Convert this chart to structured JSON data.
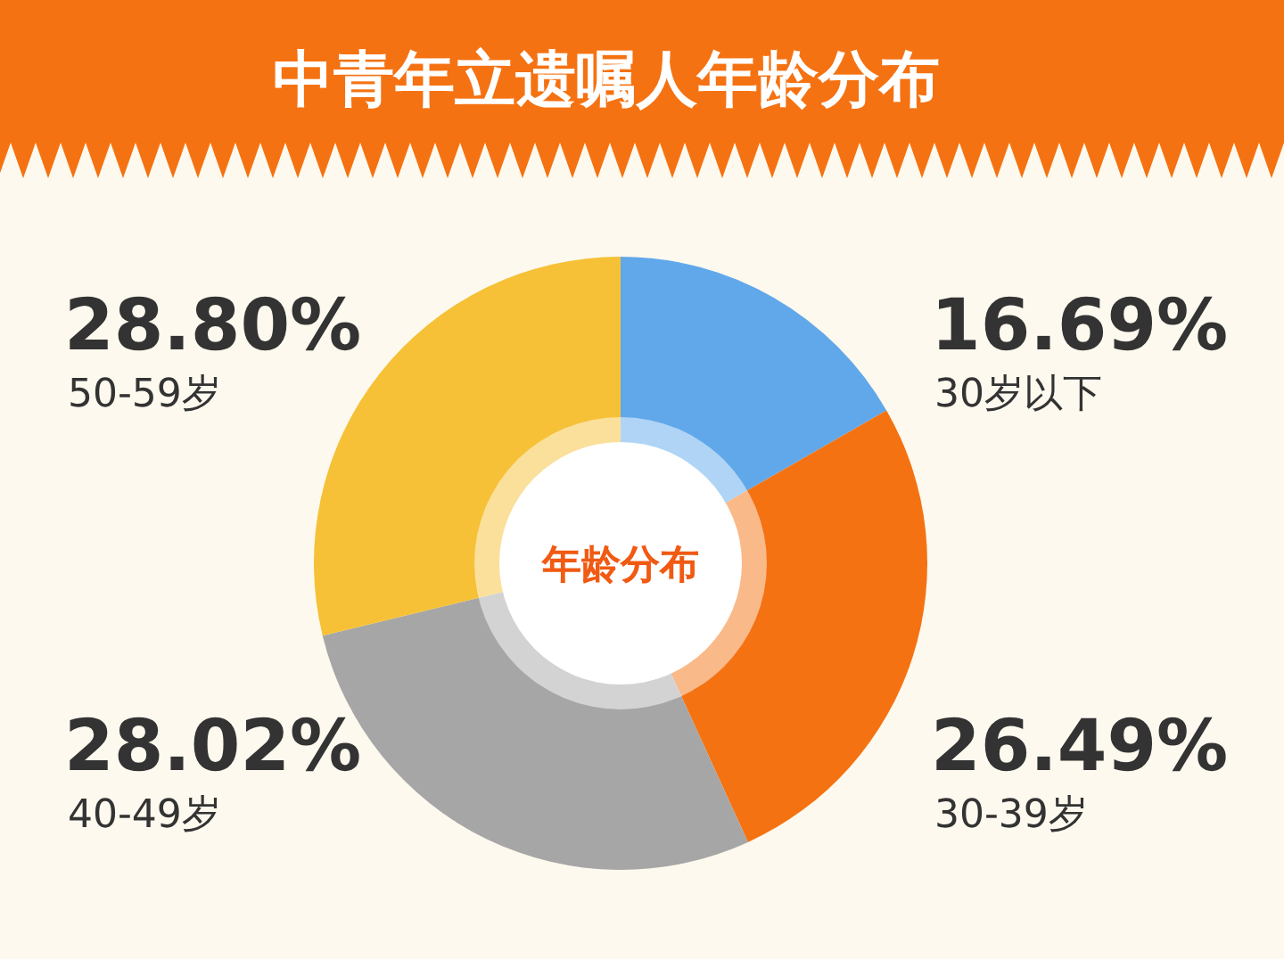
{
  "chart_data": {
    "type": "donut",
    "title": "中青年立遗嘱人年龄分布",
    "categories": [
      "30岁以下",
      "30-39岁",
      "40-49岁",
      "50-59岁"
    ],
    "values": [
      16.69,
      26.49,
      28.02,
      28.8
    ],
    "value_labels": [
      "16.69%",
      "26.49%",
      "28.02%",
      "28.80%"
    ],
    "colors": [
      "#61a8ea",
      "#f57212",
      "#a6a6a6",
      "#f6c137"
    ],
    "annotations": [
      "年龄分布"
    ]
  }
}
